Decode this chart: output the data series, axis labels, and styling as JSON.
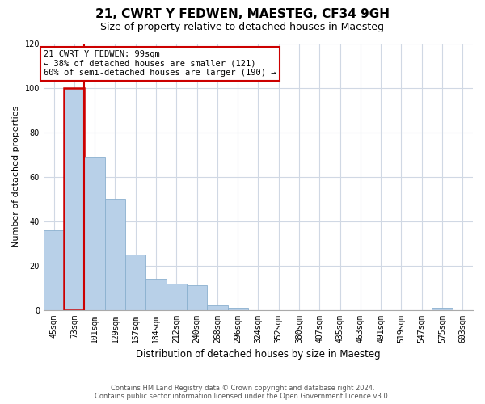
{
  "title": "21, CWRT Y FEDWEN, MAESTEG, CF34 9GH",
  "subtitle": "Size of property relative to detached houses in Maesteg",
  "xlabel": "Distribution of detached houses by size in Maesteg",
  "ylabel": "Number of detached properties",
  "bar_labels": [
    "45sqm",
    "73sqm",
    "101sqm",
    "129sqm",
    "157sqm",
    "184sqm",
    "212sqm",
    "240sqm",
    "268sqm",
    "296sqm",
    "324sqm",
    "352sqm",
    "380sqm",
    "407sqm",
    "435sqm",
    "463sqm",
    "491sqm",
    "519sqm",
    "547sqm",
    "575sqm",
    "603sqm"
  ],
  "bar_values": [
    36,
    100,
    69,
    50,
    25,
    14,
    12,
    11,
    2,
    1,
    0,
    0,
    0,
    0,
    0,
    0,
    0,
    0,
    0,
    1,
    0
  ],
  "bar_color": "#b8d0e8",
  "bar_edge_color": "#8ab0cf",
  "highlight_bar_index": 1,
  "highlight_color": "#cc0000",
  "red_line_x": 1.5,
  "annotation_text": "21 CWRT Y FEDWEN: 99sqm\n← 38% of detached houses are smaller (121)\n60% of semi-detached houses are larger (190) →",
  "annotation_box_color": "#ffffff",
  "annotation_box_edge_color": "#cc0000",
  "ylim": [
    0,
    120
  ],
  "yticks": [
    0,
    20,
    40,
    60,
    80,
    100,
    120
  ],
  "footnote_line1": "Contains HM Land Registry data © Crown copyright and database right 2024.",
  "footnote_line2": "Contains public sector information licensed under the Open Government Licence v3.0.",
  "background_color": "#ffffff",
  "grid_color": "#d0d8e4",
  "title_fontsize": 11,
  "subtitle_fontsize": 9,
  "ylabel_fontsize": 8,
  "xlabel_fontsize": 8.5,
  "tick_fontsize": 7,
  "annot_fontsize": 7.5,
  "footnote_fontsize": 6
}
